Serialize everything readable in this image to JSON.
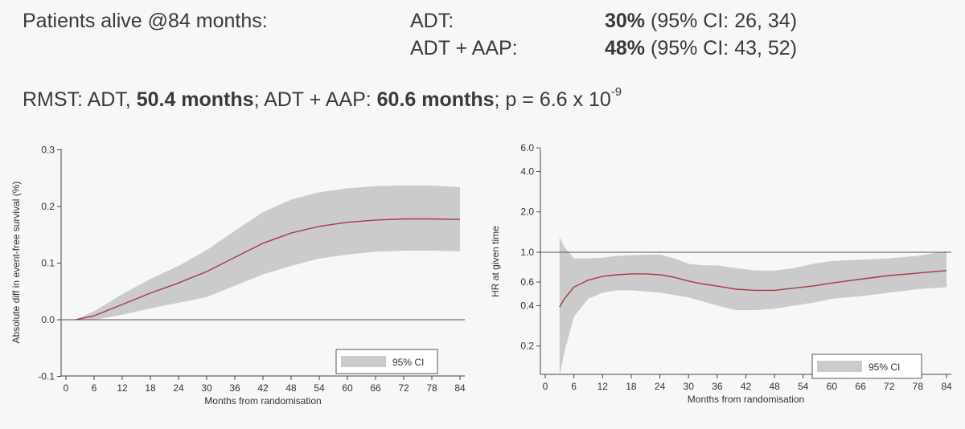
{
  "header": {
    "label": "Patients alive @84 months:",
    "rows": [
      {
        "arm": "ADT:",
        "pct": "30%",
        "ci": "(95% CI: 26, 34)"
      },
      {
        "arm": "ADT + AAP:",
        "pct": "48%",
        "ci": "(95% CI: 43, 52)"
      }
    ]
  },
  "rmst": {
    "prefix": "RMST: ADT, ",
    "adt_value": "50.4 months",
    "middle": "; ADT + AAP: ",
    "aap_value": "60.6 months",
    "p_text": "; p = 6.6 x 10",
    "p_exp": "-9"
  },
  "colors": {
    "band": "#cbcbcb",
    "line": "#a83a44",
    "axis": "#444444",
    "reference": "#555555"
  },
  "chart_data": [
    {
      "type": "area",
      "ylabel": "Absolute diff in event-free survival (%)",
      "xlabel": "Months from randomisation",
      "xlim": [
        0,
        84
      ],
      "ylim": [
        -0.1,
        0.3
      ],
      "xticks": [
        0,
        6,
        12,
        18,
        24,
        30,
        36,
        42,
        48,
        54,
        60,
        66,
        72,
        78,
        84
      ],
      "yticks": [
        -0.1,
        0.0,
        0.1,
        0.2,
        0.3
      ],
      "ytick_labels": [
        "-0.1",
        "0.0",
        "0.1",
        "0.2",
        "0.3"
      ],
      "reference_line": 0.0,
      "legend": {
        "label": "95% CI",
        "position": "bottom-right"
      },
      "x": [
        2,
        6,
        12,
        18,
        24,
        30,
        36,
        42,
        48,
        54,
        60,
        66,
        72,
        78,
        84
      ],
      "estimate": [
        0.0,
        0.007,
        0.027,
        0.047,
        0.065,
        0.085,
        0.11,
        0.135,
        0.153,
        0.165,
        0.172,
        0.176,
        0.178,
        0.178,
        0.177
      ],
      "ci_upper": [
        0.0,
        0.015,
        0.045,
        0.072,
        0.095,
        0.123,
        0.157,
        0.19,
        0.212,
        0.225,
        0.232,
        0.236,
        0.237,
        0.237,
        0.234
      ],
      "ci_lower": [
        0.0,
        0.0,
        0.009,
        0.02,
        0.03,
        0.04,
        0.06,
        0.08,
        0.095,
        0.108,
        0.115,
        0.12,
        0.122,
        0.122,
        0.121
      ]
    },
    {
      "type": "area",
      "ylabel": "HR at given time",
      "xlabel": "Months from randomisation",
      "xlim": [
        0,
        84
      ],
      "ylim": [
        0.1,
        7.0
      ],
      "yscale": "log",
      "xticks": [
        0,
        6,
        12,
        18,
        24,
        30,
        36,
        42,
        48,
        54,
        60,
        66,
        72,
        78,
        84
      ],
      "yticks": [
        0.2,
        0.4,
        0.6,
        1.0,
        2.0,
        4.0,
        6.0
      ],
      "ytick_labels": [
        "0.2",
        "0.4",
        "0.6",
        "1.0",
        "2.0",
        "4.0",
        "6.0"
      ],
      "reference_line": 1.0,
      "legend": {
        "label": "95% CI",
        "position": "bottom-right"
      },
      "x": [
        3,
        4,
        6,
        9,
        12,
        15,
        18,
        21,
        24,
        27,
        30,
        33,
        36,
        40,
        44,
        48,
        52,
        56,
        60,
        66,
        72,
        78,
        84
      ],
      "estimate": [
        0.39,
        0.45,
        0.55,
        0.62,
        0.66,
        0.68,
        0.69,
        0.69,
        0.68,
        0.65,
        0.61,
        0.58,
        0.56,
        0.53,
        0.52,
        0.52,
        0.54,
        0.56,
        0.59,
        0.63,
        0.67,
        0.7,
        0.73
      ],
      "ci_upper": [
        1.3,
        1.1,
        0.9,
        0.9,
        0.91,
        0.94,
        0.95,
        0.96,
        0.96,
        0.9,
        0.82,
        0.8,
        0.8,
        0.76,
        0.73,
        0.73,
        0.76,
        0.82,
        0.86,
        0.88,
        0.9,
        0.94,
        1.02
      ],
      "ci_lower": [
        0.12,
        0.18,
        0.33,
        0.45,
        0.5,
        0.52,
        0.52,
        0.51,
        0.5,
        0.48,
        0.46,
        0.43,
        0.4,
        0.37,
        0.37,
        0.38,
        0.4,
        0.42,
        0.45,
        0.47,
        0.5,
        0.53,
        0.55
      ]
    }
  ]
}
